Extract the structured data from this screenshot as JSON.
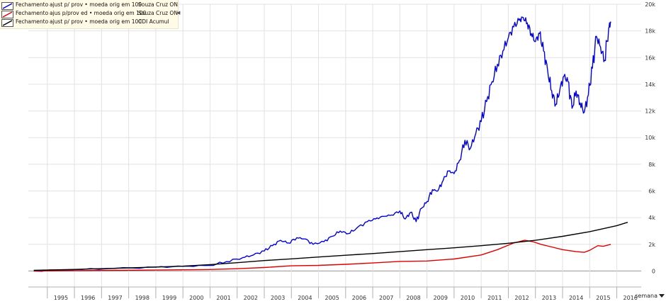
{
  "legend": [
    {
      "label": "Fechamento",
      "adjust": "ajust p/ prov • moeda orig em 100",
      "series": "Souza Cruz ON",
      "color": "#0000dd",
      "speaker": false
    },
    {
      "label": "Fechamento",
      "adjust": "ajus p/prov ed • moeda orig em 100",
      "series": "Souza Cruz ON",
      "color": "#dd0000",
      "speaker": true
    },
    {
      "label": "Fechamento",
      "adjust": "ajust p/ prov • moeda orig em 100",
      "series": "CDI Acumul",
      "color": "#000000",
      "speaker": false
    }
  ],
  "frequency": {
    "label": "semana"
  },
  "colors": {
    "grid": "#e2e2e2",
    "axis": "#999999",
    "background": "#ffffff"
  },
  "icons": {
    "legend_speaker": "speaker-icon",
    "frequency_dropdown": "chevron-down-icon"
  },
  "chart_data": {
    "type": "line",
    "x_unit": "year",
    "xlim": [
      1994.3,
      2016.9
    ],
    "ylim": [
      -1200,
      20000
    ],
    "grid": true,
    "legend_position": "top-left",
    "y_ticks": [
      0,
      2000,
      4000,
      6000,
      8000,
      10000,
      12000,
      14000,
      16000,
      18000,
      20000
    ],
    "y_tick_labels": [
      "0",
      "2k",
      "4k",
      "6k",
      "8k",
      "10k",
      "12k",
      "14k",
      "16k",
      "18k",
      "20k"
    ],
    "x_tick_labels": [
      "1995",
      "1996",
      "1997",
      "1998",
      "1999",
      "2000",
      "2001",
      "2002",
      "2003",
      "2004",
      "2005",
      "2006",
      "2007",
      "2008",
      "2009",
      "2010",
      "2011",
      "2012",
      "2013",
      "2014",
      "2015",
      "2016"
    ],
    "series": [
      {
        "name": "Souza Cruz ON",
        "color": "#0000dd",
        "x": [
          1994.5,
          1996.0,
          1997.5,
          1999.0,
          2000.0,
          2001.0,
          2001.6,
          2002.2,
          2002.6,
          2003.0,
          2003.3,
          2003.6,
          2003.9,
          2004.2,
          2004.5,
          2004.8,
          2005.2,
          2005.5,
          2005.8,
          2006.1,
          2006.4,
          2006.8,
          2007.1,
          2007.4,
          2007.7,
          2008.0,
          2008.2,
          2008.4,
          2008.6,
          2008.8,
          2009.0,
          2009.2,
          2009.4,
          2009.6,
          2009.8,
          2010.0,
          2010.2,
          2010.4,
          2010.6,
          2010.8,
          2011.0,
          2011.2,
          2011.4,
          2011.6,
          2011.8,
          2012.0,
          2012.2,
          2012.4,
          2012.55,
          2012.7,
          2012.85,
          2013.0,
          2013.15,
          2013.3,
          2013.45,
          2013.6,
          2013.75,
          2013.9,
          2014.05,
          2014.2,
          2014.35,
          2014.5,
          2014.65,
          2014.8,
          2014.95,
          2015.1,
          2015.25,
          2015.4,
          2015.55,
          2015.7,
          2015.78
        ],
        "values": [
          0,
          100,
          200,
          280,
          350,
          420,
          700,
          1000,
          1200,
          1500,
          1900,
          2300,
          2100,
          2500,
          2400,
          2000,
          2200,
          2600,
          3000,
          2800,
          3200,
          3700,
          3900,
          4100,
          4200,
          4500,
          3900,
          4400,
          3700,
          4700,
          5200,
          6100,
          6000,
          6800,
          7500,
          7300,
          8300,
          9800,
          9200,
          10300,
          11200,
          12700,
          14200,
          15500,
          16500,
          17500,
          18300,
          18800,
          19000,
          18600,
          17800,
          17200,
          17800,
          16500,
          15000,
          13500,
          12500,
          13600,
          14600,
          14200,
          12200,
          13500,
          12600,
          11900,
          13200,
          15200,
          17600,
          16800,
          15800,
          18200,
          18700
        ]
      },
      {
        "name": "Souza Cruz ON",
        "color": "#dd0000",
        "x": [
          1994.5,
          1996.0,
          1997.5,
          1999.0,
          2000.0,
          2001.0,
          2002.0,
          2003.0,
          2004.0,
          2005.0,
          2006.0,
          2007.0,
          2008.0,
          2009.0,
          2010.0,
          2011.0,
          2011.6,
          2012.2,
          2012.6,
          2012.9,
          2013.2,
          2013.6,
          2014.0,
          2014.5,
          2014.8,
          2015.0,
          2015.3,
          2015.5,
          2015.78
        ],
        "values": [
          0,
          30,
          50,
          70,
          90,
          110,
          170,
          260,
          390,
          420,
          500,
          600,
          720,
          750,
          900,
          1200,
          1600,
          2100,
          2300,
          2200,
          2000,
          1800,
          1600,
          1450,
          1400,
          1550,
          1900,
          1850,
          2000
        ]
      },
      {
        "name": "CDI Acumul",
        "color": "#000000",
        "x": [
          1994.5,
          1996.0,
          1998.0,
          2000.0,
          2001.0,
          2002.0,
          2003.0,
          2004.0,
          2005.0,
          2006.0,
          2007.0,
          2008.0,
          2009.0,
          2010.0,
          2011.0,
          2012.0,
          2013.0,
          2014.0,
          2015.0,
          2016.0,
          2016.4
        ],
        "values": [
          50,
          120,
          230,
          360,
          480,
          620,
          780,
          910,
          1050,
          1180,
          1310,
          1450,
          1600,
          1740,
          1900,
          2080,
          2300,
          2600,
          2950,
          3400,
          3650
        ]
      }
    ]
  }
}
